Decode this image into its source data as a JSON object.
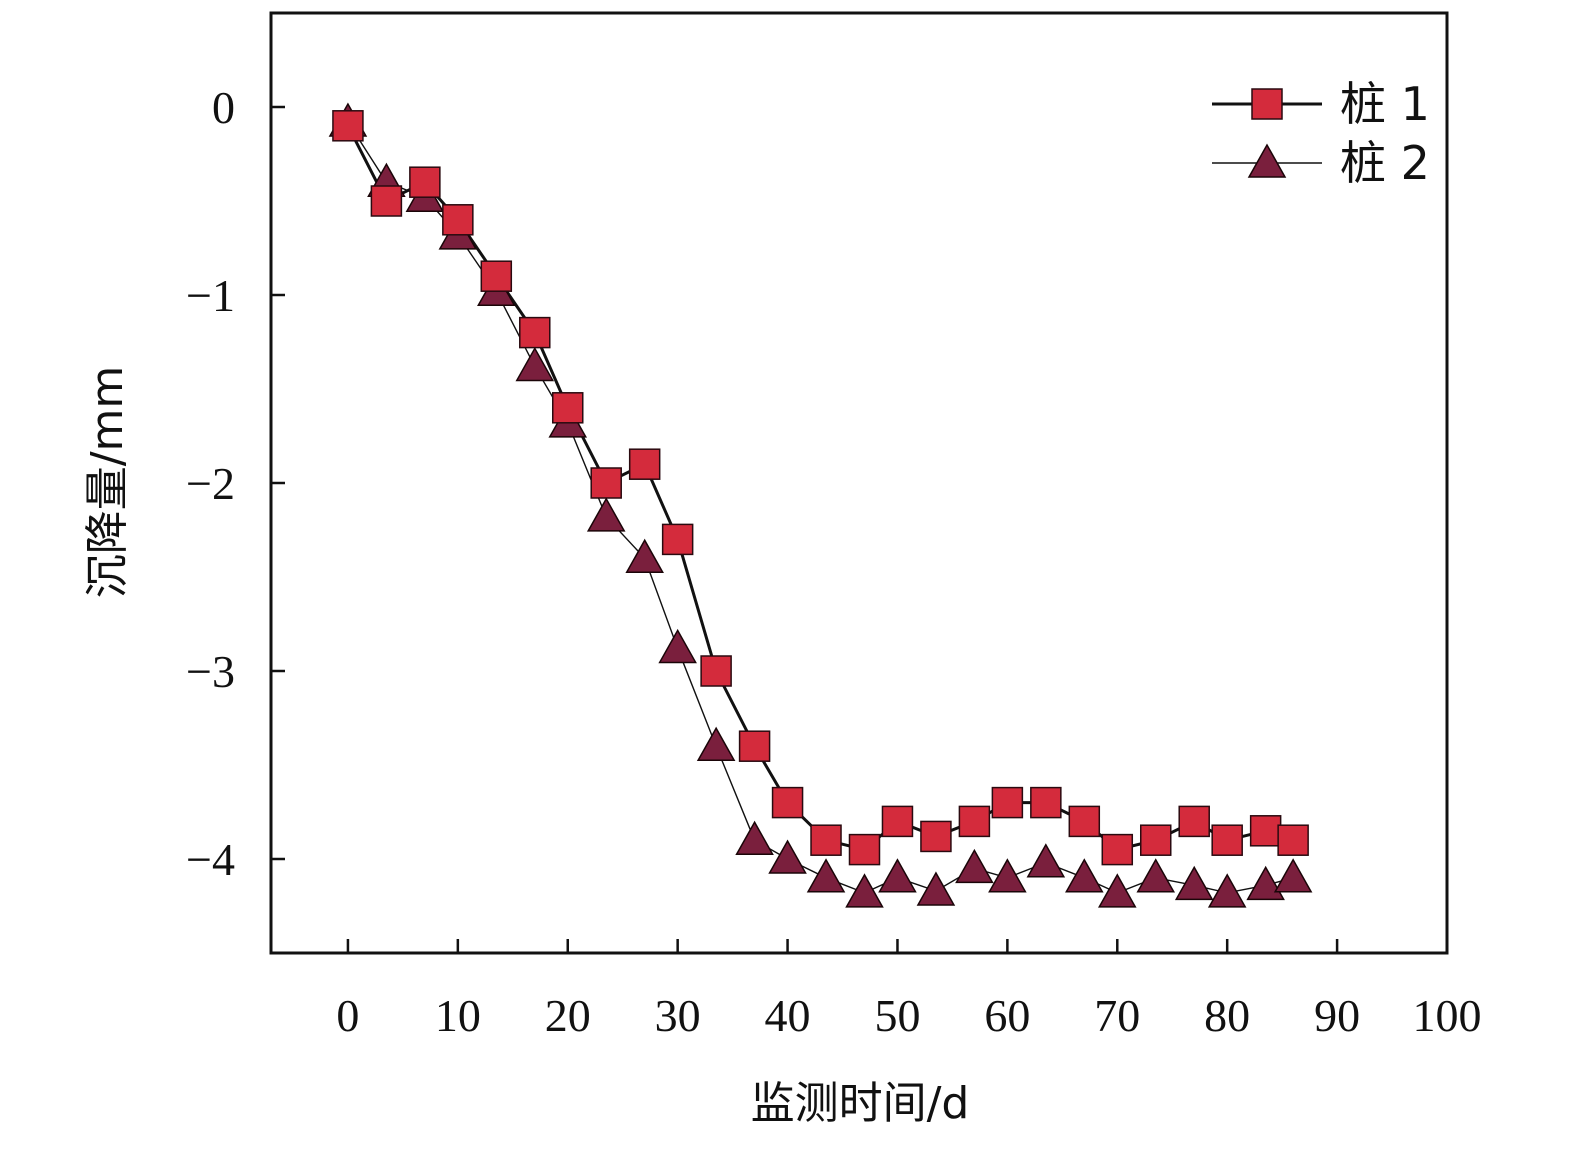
{
  "chart_data": {
    "type": "line",
    "xlabel": "监测时间/d",
    "ylabel": "沉降量/mm",
    "xlim": [
      -7,
      100
    ],
    "ylim": [
      -4.5,
      0.5
    ],
    "xticks": [
      0,
      10,
      20,
      30,
      40,
      50,
      60,
      70,
      80,
      90,
      100
    ],
    "yticks": [
      0,
      -1,
      -2,
      -3,
      -4
    ],
    "ytick_labels": [
      "0",
      "−1",
      "−2",
      "−3",
      "−4"
    ],
    "grid": false,
    "legend_position": "top-right",
    "series": [
      {
        "name": "桩 1",
        "marker": "square",
        "color": "#d42b3c",
        "x": [
          0,
          3.5,
          7,
          10,
          13.5,
          17,
          20,
          23.5,
          27,
          30,
          33.5,
          37,
          40,
          43.5,
          47,
          50,
          53.5,
          57,
          60,
          63.5,
          67,
          70,
          73.5,
          77,
          80,
          83.5,
          86
        ],
        "y": [
          -0.1,
          -0.5,
          -0.4,
          -0.6,
          -0.9,
          -1.2,
          -1.6,
          -2.0,
          -1.9,
          -2.3,
          -3.0,
          -3.4,
          -3.7,
          -3.9,
          -3.95,
          -3.8,
          -3.88,
          -3.8,
          -3.7,
          -3.7,
          -3.8,
          -3.95,
          -3.9,
          -3.8,
          -3.9,
          -3.85,
          -3.9
        ]
      },
      {
        "name": "桩 2",
        "marker": "triangle",
        "color": "#7a1f3d",
        "x": [
          0,
          3.5,
          7,
          10,
          13.5,
          17,
          20,
          23.5,
          27,
          30,
          33.5,
          37,
          40,
          43.5,
          47,
          50,
          53.5,
          57,
          60,
          63.5,
          67,
          70,
          73.5,
          77,
          80,
          83.5,
          86
        ],
        "y": [
          -0.08,
          -0.4,
          -0.48,
          -0.68,
          -0.98,
          -1.38,
          -1.68,
          -2.18,
          -2.4,
          -2.88,
          -3.4,
          -3.9,
          -4.0,
          -4.1,
          -4.18,
          -4.1,
          -4.17,
          -4.05,
          -4.1,
          -4.02,
          -4.1,
          -4.18,
          -4.1,
          -4.14,
          -4.18,
          -4.14,
          -4.1
        ]
      }
    ]
  }
}
